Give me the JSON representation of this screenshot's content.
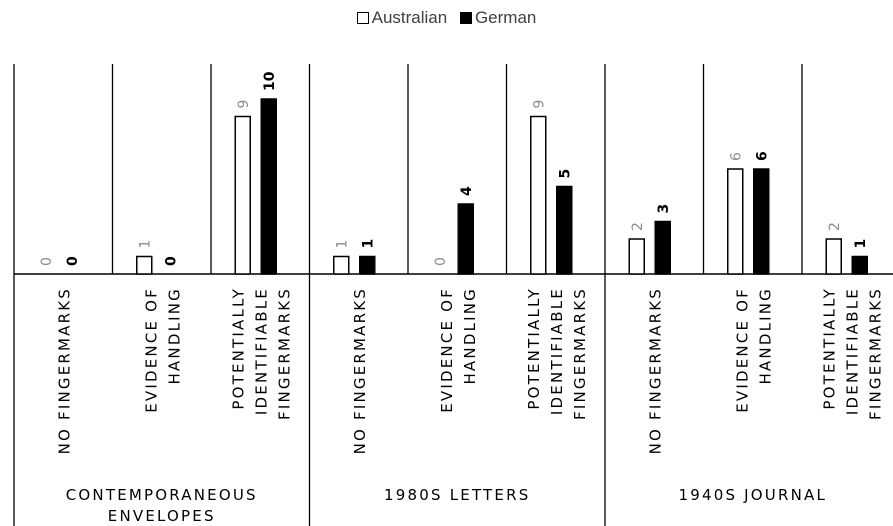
{
  "chart_data": {
    "type": "bar",
    "title": "",
    "xlabel": "",
    "ylabel": "",
    "ylim": [
      0,
      11
    ],
    "grid": false,
    "legend": "top-center",
    "groups": [
      {
        "name": "CONTEMPORANEOUS ENVELOPES",
        "lines": [
          "CONTEMPORANEOUS",
          "ENVELOPES"
        ]
      },
      {
        "name": "1980S LETTERS",
        "lines": [
          "1980S LETTERS"
        ]
      },
      {
        "name": "1940S JOURNAL",
        "lines": [
          "1940S JOURNAL"
        ]
      }
    ],
    "categories": [
      {
        "label": "NO FINGERMARKS",
        "lines": [
          "NO FINGERMARKS"
        ]
      },
      {
        "label": "EVIDENCE OF HANDLING",
        "lines": [
          "EVIDENCE OF",
          "HANDLING"
        ]
      },
      {
        "label": "POTENTIALLY IDENTIFIABLE FINGERMARKS",
        "lines": [
          "POTENTIALLY",
          "IDENTIFIABLE",
          "FINGERMARKS"
        ]
      }
    ],
    "series": [
      {
        "name": "Australian",
        "color": "#ffffff",
        "stroke": "#000000",
        "label_color": "#8c8c8c",
        "values": [
          [
            0,
            1,
            9
          ],
          [
            1,
            0,
            9
          ],
          [
            2,
            6,
            2
          ]
        ]
      },
      {
        "name": "German",
        "color": "#000000",
        "stroke": "#000000",
        "label_color": "#000000",
        "values": [
          [
            0,
            0,
            10
          ],
          [
            1,
            4,
            5
          ],
          [
            3,
            6,
            1
          ]
        ]
      }
    ]
  }
}
